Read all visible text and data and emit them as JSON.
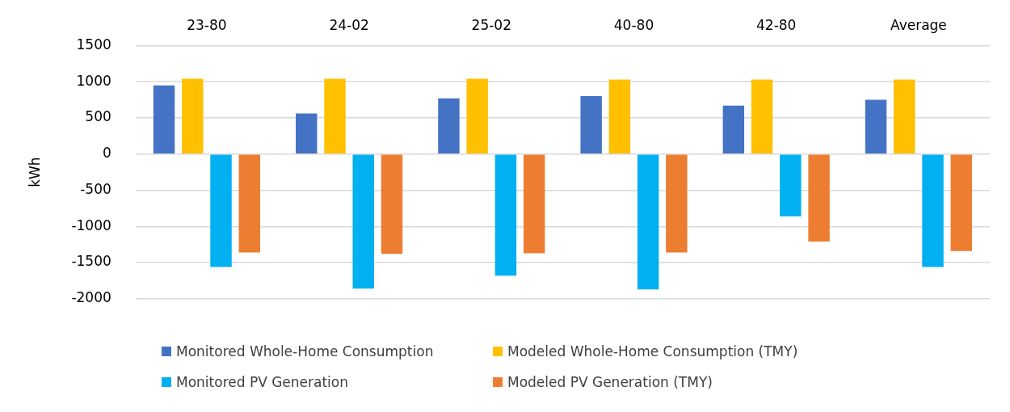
{
  "chart_data": {
    "type": "bar",
    "ylabel": "kWh",
    "categories": [
      "23-80",
      "24-02",
      "25-02",
      "40-80",
      "42-80",
      "Average"
    ],
    "series": [
      {
        "name": "Monitored Whole-Home Consumption",
        "color": "#4472c4",
        "values": [
          950,
          560,
          770,
          800,
          670,
          750
        ]
      },
      {
        "name": "Modeled Whole-Home Consumption (TMY)",
        "color": "#ffc000",
        "values": [
          1040,
          1040,
          1040,
          1030,
          1030,
          1030
        ]
      },
      {
        "name": "Monitored PV Generation",
        "color": "#00b0f0",
        "values": [
          -1560,
          -1860,
          -1680,
          -1870,
          -860,
          -1560
        ]
      },
      {
        "name": "Modeled PV Generation (TMY)",
        "color": "#ed7d31",
        "values": [
          -1360,
          -1380,
          -1370,
          -1360,
          -1210,
          -1340
        ]
      }
    ],
    "ylim": [
      -2000,
      1500
    ],
    "yticks": [
      -2000,
      -1500,
      -1000,
      -500,
      0,
      500,
      1000,
      1500
    ],
    "grid": "y",
    "legend": "bottom"
  }
}
